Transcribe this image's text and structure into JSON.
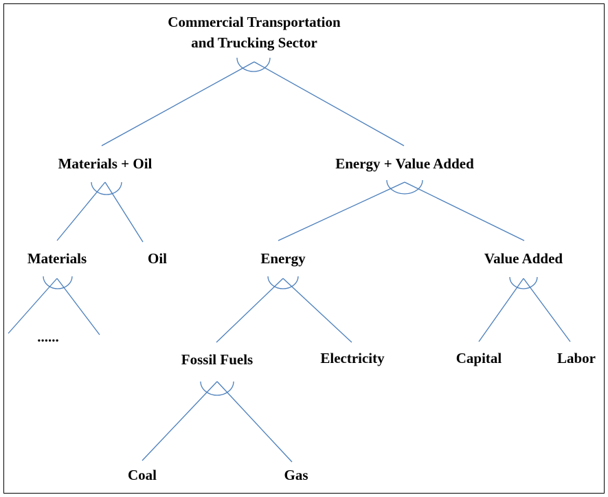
{
  "root": {
    "lines": [
      "Commercial Transportation",
      "and Trucking Sector"
    ]
  },
  "nodes": [
    {
      "label": "Materials + Oil"
    },
    {
      "label": "Energy + Value Added"
    },
    {
      "label": "Materials"
    },
    {
      "label": "Oil"
    },
    {
      "label": "Energy"
    },
    {
      "label": "Value Added"
    },
    {
      "label": "......"
    },
    {
      "label": "Fossil Fuels"
    },
    {
      "label": "Electricity"
    },
    {
      "label": "Capital"
    },
    {
      "label": "Labor"
    },
    {
      "label": "Coal"
    },
    {
      "label": "Gas"
    }
  ]
}
